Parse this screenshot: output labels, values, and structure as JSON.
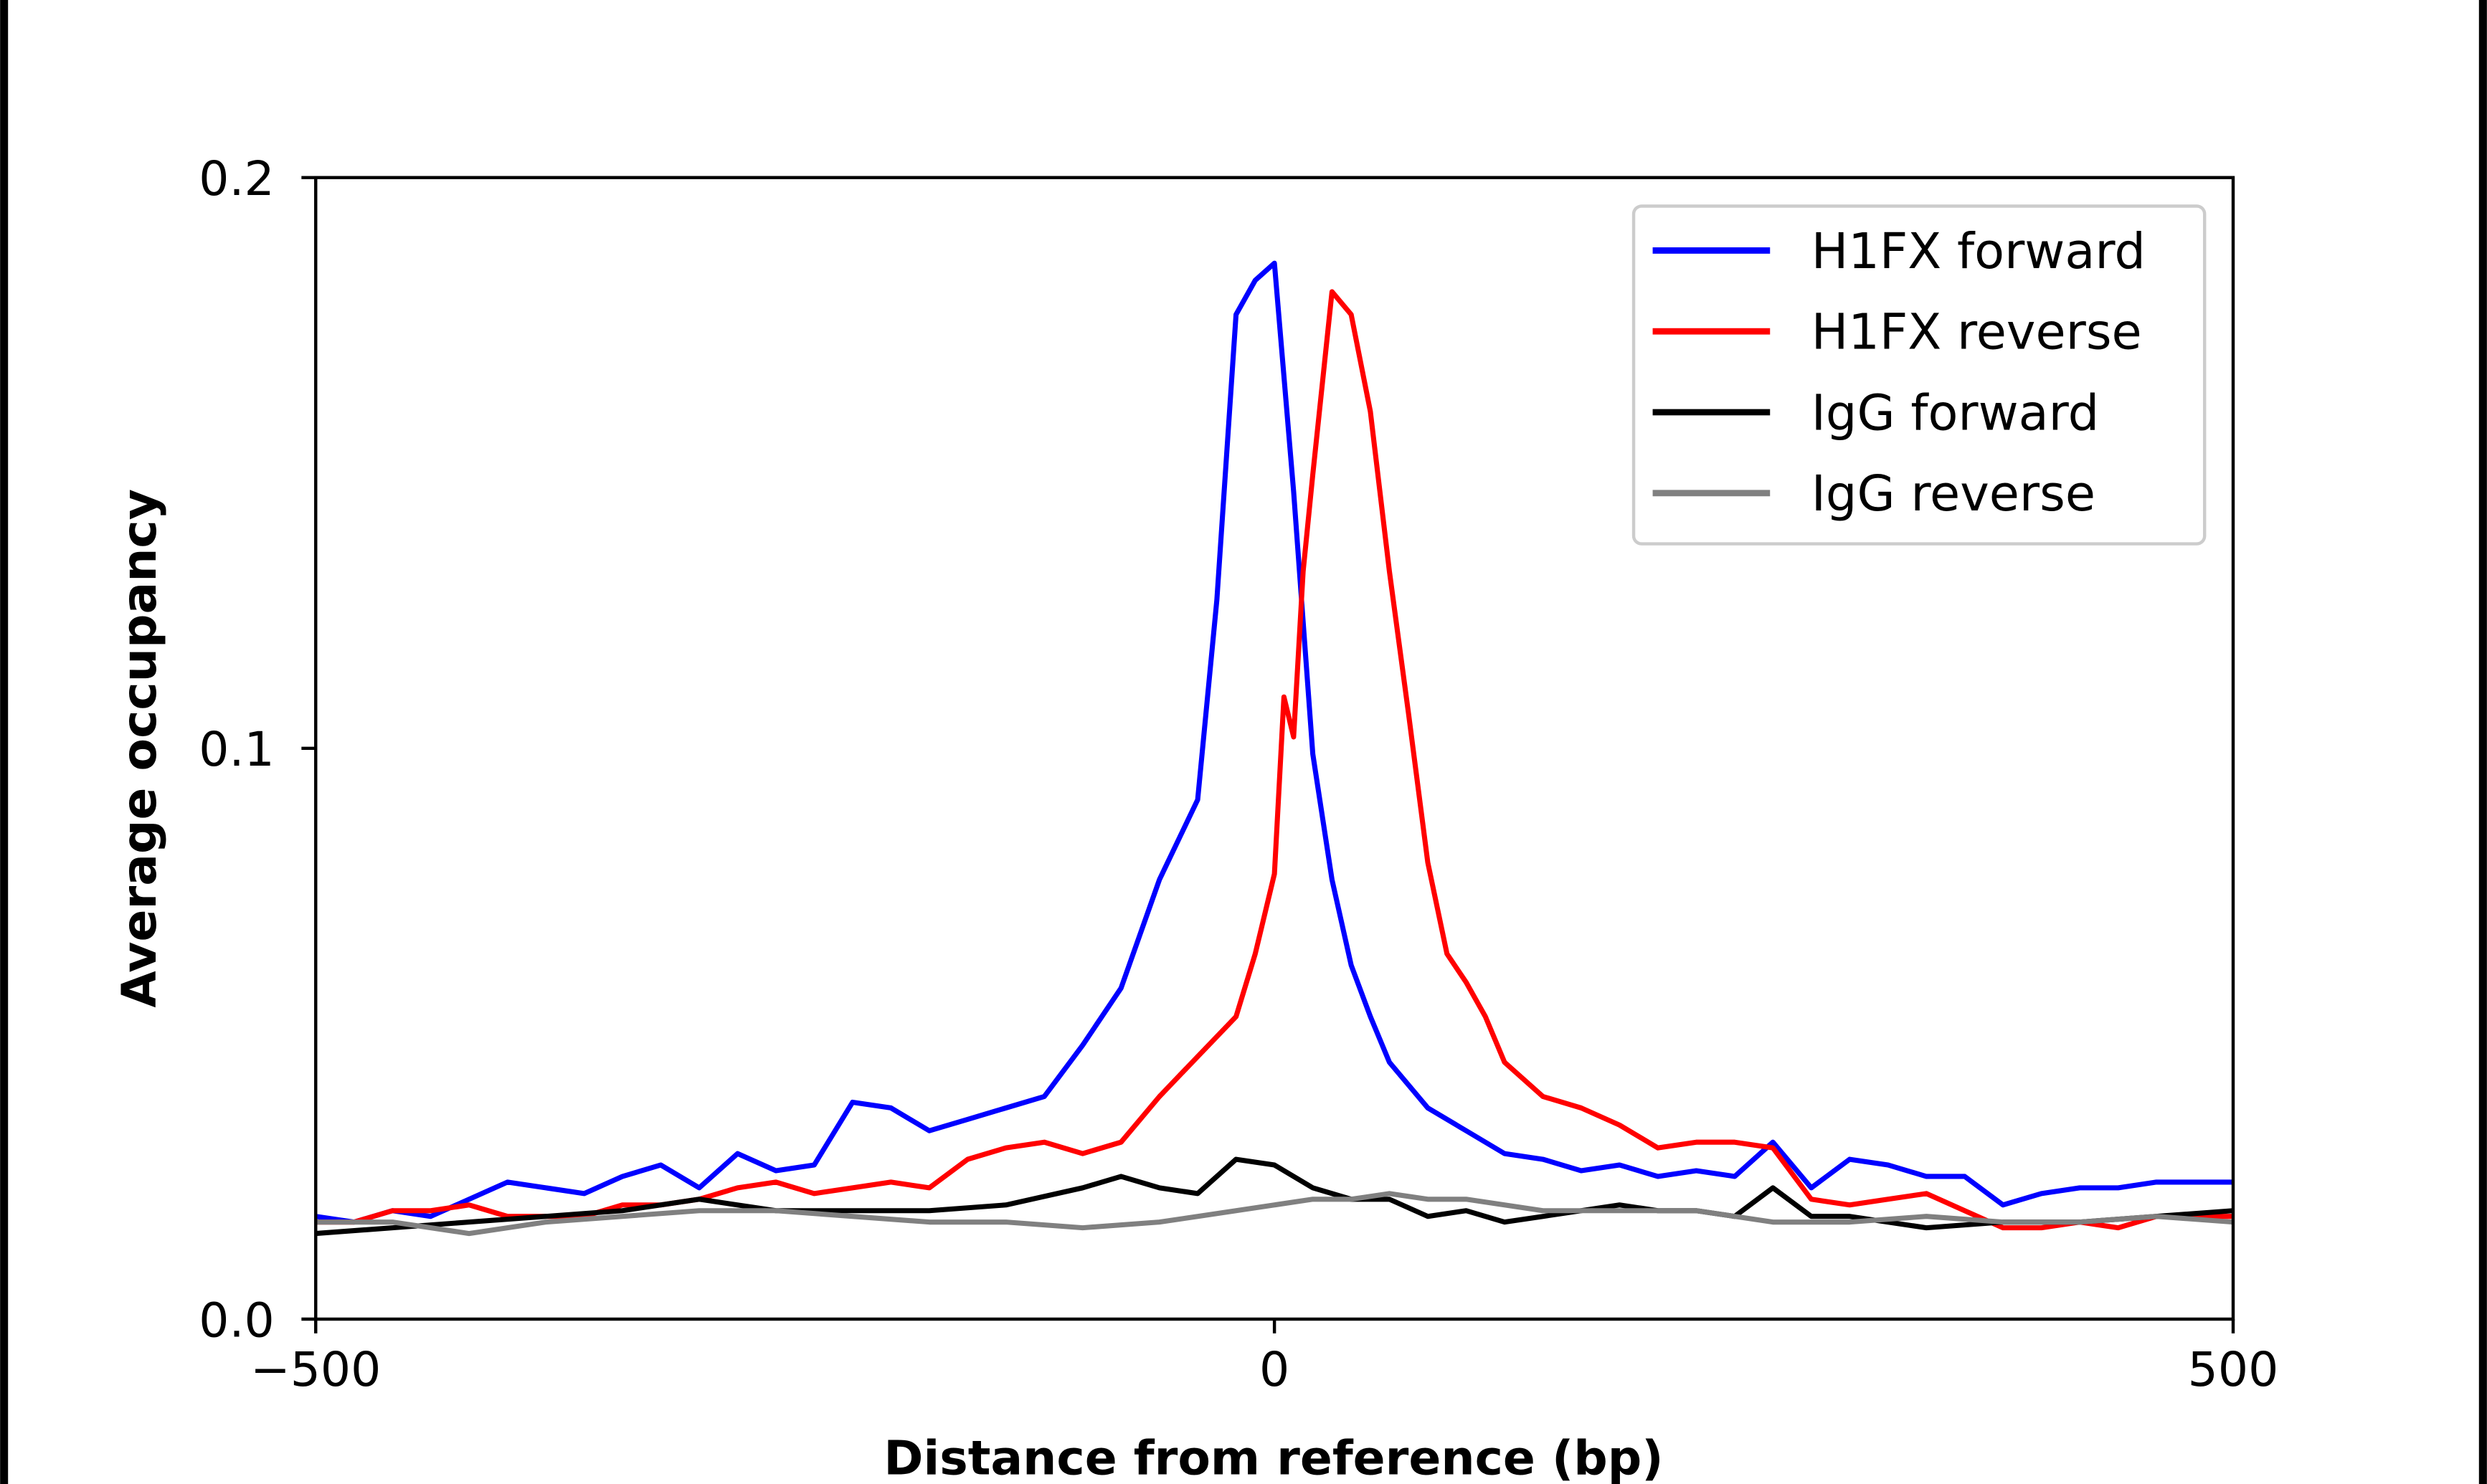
{
  "chart_data": {
    "type": "line",
    "title": "",
    "xlabel": "Distance from reference (bp)",
    "ylabel": "Average occupancy",
    "xlim": [
      -500,
      500
    ],
    "ylim": [
      0,
      0.2
    ],
    "xticks": [
      -500,
      0,
      500
    ],
    "xtick_labels": [
      "−500",
      "0",
      "500"
    ],
    "yticks": [
      0,
      0.1,
      0.2
    ],
    "ytick_labels": [
      "0.0",
      "0.1",
      "0.2"
    ],
    "grid": false,
    "legend_position": "top-right",
    "series": [
      {
        "name": "H1FX forward",
        "color": "#0000ff",
        "x": [
          -500,
          -480,
          -460,
          -440,
          -420,
          -400,
          -380,
          -360,
          -340,
          -320,
          -300,
          -280,
          -260,
          -240,
          -220,
          -200,
          -180,
          -160,
          -140,
          -120,
          -100,
          -80,
          -60,
          -40,
          -30,
          -20,
          -10,
          0,
          10,
          20,
          30,
          40,
          50,
          60,
          80,
          100,
          120,
          140,
          160,
          180,
          200,
          220,
          240,
          260,
          280,
          300,
          320,
          340,
          360,
          380,
          400,
          420,
          440,
          460,
          480,
          500
        ],
        "y": [
          0.018,
          0.017,
          0.019,
          0.018,
          0.021,
          0.024,
          0.023,
          0.022,
          0.025,
          0.027,
          0.023,
          0.029,
          0.026,
          0.027,
          0.038,
          0.037,
          0.033,
          0.035,
          0.037,
          0.039,
          0.048,
          0.058,
          0.077,
          0.091,
          0.126,
          0.176,
          0.182,
          0.185,
          0.145,
          0.099,
          0.077,
          0.062,
          0.053,
          0.045,
          0.037,
          0.033,
          0.029,
          0.028,
          0.026,
          0.027,
          0.025,
          0.026,
          0.025,
          0.031,
          0.023,
          0.028,
          0.027,
          0.025,
          0.025,
          0.02,
          0.022,
          0.023,
          0.023,
          0.024,
          0.024,
          0.024
        ]
      },
      {
        "name": "H1FX reverse",
        "color": "#ff0000",
        "x": [
          -500,
          -480,
          -460,
          -440,
          -420,
          -400,
          -380,
          -360,
          -340,
          -320,
          -300,
          -280,
          -260,
          -240,
          -220,
          -200,
          -180,
          -160,
          -140,
          -120,
          -100,
          -80,
          -60,
          -40,
          -20,
          -10,
          0,
          5,
          10,
          15,
          20,
          30,
          40,
          50,
          60,
          70,
          80,
          90,
          100,
          110,
          120,
          140,
          160,
          180,
          200,
          220,
          240,
          260,
          280,
          300,
          320,
          340,
          360,
          380,
          400,
          420,
          440,
          460,
          480,
          500
        ],
        "y": [
          0.017,
          0.017,
          0.019,
          0.019,
          0.02,
          0.018,
          0.018,
          0.018,
          0.02,
          0.02,
          0.021,
          0.023,
          0.024,
          0.022,
          0.023,
          0.024,
          0.023,
          0.028,
          0.03,
          0.031,
          0.029,
          0.031,
          0.039,
          0.046,
          0.053,
          0.064,
          0.078,
          0.109,
          0.102,
          0.131,
          0.148,
          0.18,
          0.176,
          0.159,
          0.131,
          0.106,
          0.08,
          0.064,
          0.059,
          0.053,
          0.045,
          0.039,
          0.037,
          0.034,
          0.03,
          0.031,
          0.031,
          0.03,
          0.021,
          0.02,
          0.021,
          0.022,
          0.019,
          0.016,
          0.016,
          0.017,
          0.016,
          0.018,
          0.018,
          0.018
        ]
      },
      {
        "name": "IgG forward",
        "color": "#000000",
        "x": [
          -500,
          -460,
          -420,
          -380,
          -340,
          -300,
          -260,
          -220,
          -180,
          -140,
          -100,
          -80,
          -60,
          -40,
          -20,
          0,
          20,
          40,
          60,
          80,
          100,
          120,
          140,
          160,
          180,
          200,
          220,
          240,
          260,
          280,
          300,
          340,
          380,
          420,
          460,
          500
        ],
        "y": [
          0.015,
          0.016,
          0.017,
          0.018,
          0.019,
          0.021,
          0.019,
          0.019,
          0.019,
          0.02,
          0.023,
          0.025,
          0.023,
          0.022,
          0.028,
          0.027,
          0.023,
          0.021,
          0.021,
          0.018,
          0.019,
          0.017,
          0.018,
          0.019,
          0.02,
          0.019,
          0.019,
          0.018,
          0.023,
          0.018,
          0.018,
          0.016,
          0.017,
          0.017,
          0.018,
          0.019
        ]
      },
      {
        "name": "IgG reverse",
        "color": "#808080",
        "x": [
          -500,
          -460,
          -420,
          -380,
          -340,
          -300,
          -260,
          -220,
          -180,
          -140,
          -100,
          -60,
          -40,
          -20,
          0,
          20,
          40,
          60,
          80,
          100,
          140,
          180,
          220,
          260,
          300,
          340,
          380,
          420,
          460,
          500
        ],
        "y": [
          0.017,
          0.017,
          0.015,
          0.017,
          0.018,
          0.019,
          0.019,
          0.018,
          0.017,
          0.017,
          0.016,
          0.017,
          0.018,
          0.019,
          0.02,
          0.021,
          0.021,
          0.022,
          0.021,
          0.021,
          0.019,
          0.019,
          0.019,
          0.017,
          0.017,
          0.018,
          0.017,
          0.017,
          0.018,
          0.017
        ]
      }
    ]
  }
}
